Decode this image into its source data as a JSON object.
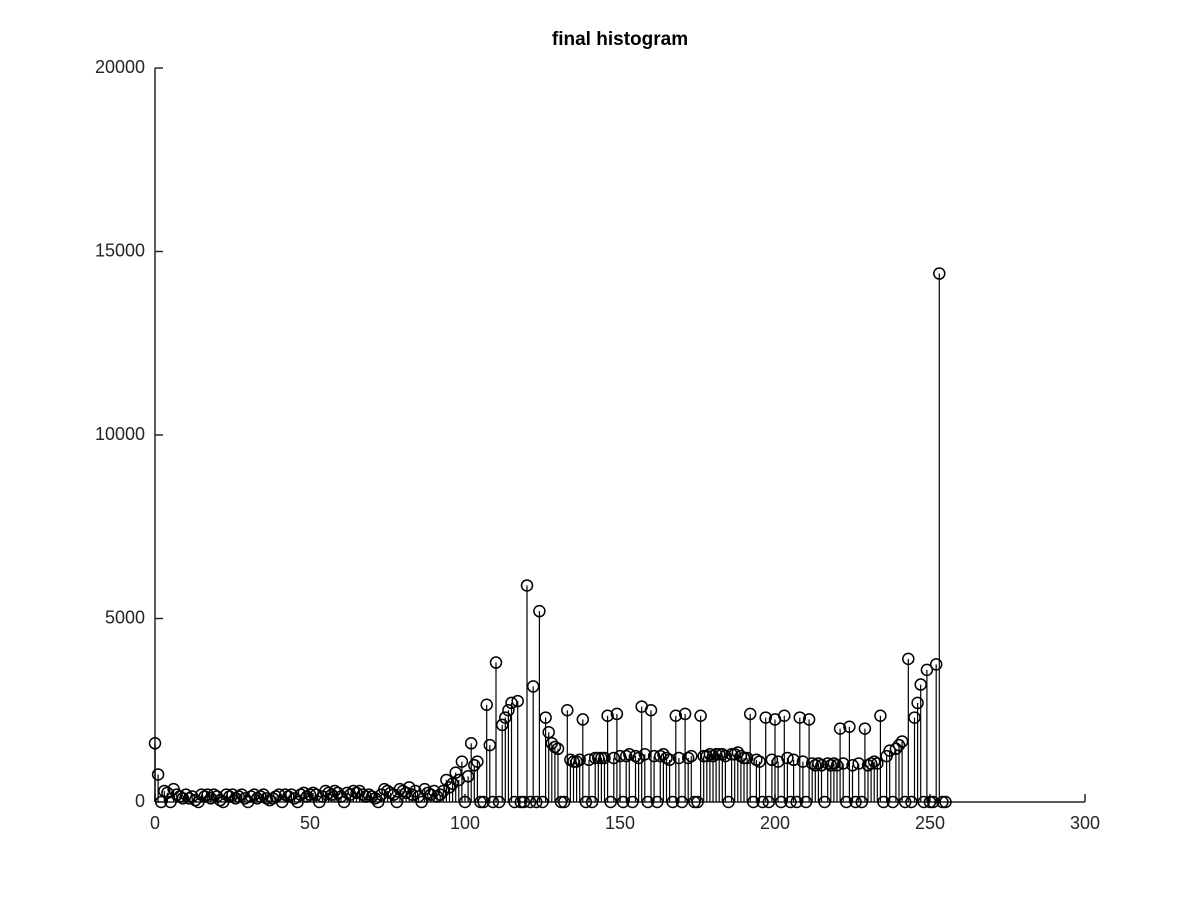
{
  "chart_data": {
    "type": "stem",
    "title": "final histogram",
    "color": "#000000",
    "x": [
      0,
      1,
      2,
      3,
      4,
      5,
      6,
      7,
      8,
      9,
      10,
      11,
      12,
      13,
      14,
      15,
      16,
      17,
      18,
      19,
      20,
      21,
      22,
      23,
      24,
      25,
      26,
      27,
      28,
      29,
      30,
      31,
      32,
      33,
      34,
      35,
      36,
      37,
      38,
      39,
      40,
      41,
      42,
      43,
      44,
      45,
      46,
      47,
      48,
      49,
      50,
      51,
      52,
      53,
      54,
      55,
      56,
      57,
      58,
      59,
      60,
      61,
      62,
      63,
      64,
      65,
      66,
      67,
      68,
      69,
      70,
      71,
      72,
      73,
      74,
      75,
      76,
      77,
      78,
      79,
      80,
      81,
      82,
      83,
      84,
      85,
      86,
      87,
      88,
      89,
      90,
      91,
      92,
      93,
      94,
      95,
      96,
      97,
      98,
      99,
      100,
      101,
      102,
      103,
      104,
      105,
      106,
      107,
      108,
      109,
      110,
      111,
      112,
      113,
      114,
      115,
      116,
      117,
      118,
      119,
      120,
      121,
      122,
      123,
      124,
      125,
      126,
      127,
      128,
      129,
      130,
      131,
      132,
      133,
      134,
      135,
      136,
      137,
      138,
      139,
      140,
      141,
      142,
      143,
      144,
      145,
      146,
      147,
      148,
      149,
      150,
      151,
      152,
      153,
      154,
      155,
      156,
      157,
      158,
      159,
      160,
      161,
      162,
      163,
      164,
      165,
      166,
      167,
      168,
      169,
      170,
      171,
      172,
      173,
      174,
      175,
      176,
      177,
      178,
      179,
      180,
      181,
      182,
      183,
      184,
      185,
      186,
      187,
      188,
      189,
      190,
      191,
      192,
      193,
      194,
      195,
      196,
      197,
      198,
      199,
      200,
      201,
      202,
      203,
      204,
      205,
      206,
      207,
      208,
      209,
      210,
      211,
      212,
      213,
      214,
      215,
      216,
      217,
      218,
      219,
      220,
      221,
      222,
      223,
      224,
      225,
      226,
      227,
      228,
      229,
      230,
      231,
      232,
      233,
      234,
      235,
      236,
      237,
      238,
      239,
      240,
      241,
      242,
      243,
      244,
      245,
      246,
      247,
      248,
      249,
      250,
      251,
      252,
      253,
      254,
      255
    ],
    "values": [
      1600,
      750,
      0,
      300,
      250,
      0,
      350,
      200,
      150,
      100,
      200,
      100,
      150,
      50,
      0,
      200,
      150,
      200,
      100,
      200,
      150,
      50,
      0,
      200,
      150,
      200,
      100,
      150,
      200,
      100,
      0,
      150,
      200,
      100,
      150,
      200,
      100,
      50,
      100,
      150,
      200,
      0,
      200,
      150,
      200,
      100,
      0,
      200,
      250,
      150,
      200,
      250,
      200,
      0,
      150,
      300,
      250,
      200,
      300,
      250,
      150,
      0,
      250,
      200,
      300,
      250,
      300,
      200,
      150,
      200,
      150,
      100,
      0,
      200,
      350,
      300,
      250,
      200,
      0,
      350,
      300,
      250,
      400,
      200,
      300,
      150,
      0,
      350,
      250,
      200,
      300,
      150,
      200,
      300,
      600,
      400,
      500,
      800,
      600,
      1100,
      0,
      700,
      1600,
      1000,
      1100,
      0,
      0,
      2650,
      1550,
      0,
      3800,
      0,
      2100,
      2300,
      2500,
      2700,
      0,
      2750,
      0,
      0,
      5900,
      0,
      3150,
      0,
      5200,
      0,
      2300,
      1900,
      1600,
      1500,
      1450,
      0,
      0,
      2500,
      1150,
      1100,
      1100,
      1150,
      2250,
      0,
      1150,
      0,
      1200,
      1200,
      1200,
      1200,
      2350,
      0,
      1200,
      2400,
      1250,
      0,
      1250,
      1300,
      0,
      1250,
      1200,
      2600,
      1300,
      0,
      2500,
      1250,
      0,
      1250,
      1300,
      1200,
      1150,
      0,
      2350,
      1200,
      0,
      2400,
      1200,
      1250,
      0,
      0,
      2350,
      1250,
      1250,
      1300,
      1250,
      1300,
      1300,
      1300,
      1250,
      0,
      1300,
      1300,
      1350,
      1250,
      1200,
      1200,
      2400,
      0,
      1150,
      1100,
      0,
      2300,
      0,
      1150,
      2250,
      1100,
      0,
      2350,
      1200,
      0,
      1150,
      0,
      2300,
      1100,
      0,
      2250,
      1050,
      1000,
      1050,
      1000,
      0,
      1050,
      1000,
      1050,
      1000,
      2000,
      1050,
      0,
      2050,
      1000,
      0,
      1050,
      0,
      2000,
      1000,
      1050,
      1100,
      1050,
      2350,
      0,
      1250,
      1400,
      0,
      1450,
      1550,
      1650,
      0,
      3900,
      0,
      2300,
      2700,
      3200,
      0,
      3600,
      0,
      0,
      3750,
      14400,
      0,
      0
    ],
    "xlim": [
      0,
      300
    ],
    "xticks": [
      0,
      50,
      100,
      150,
      200,
      250,
      300
    ],
    "ylim": [
      0,
      20000
    ],
    "yticks": [
      0,
      5000,
      10000,
      15000,
      20000
    ]
  }
}
